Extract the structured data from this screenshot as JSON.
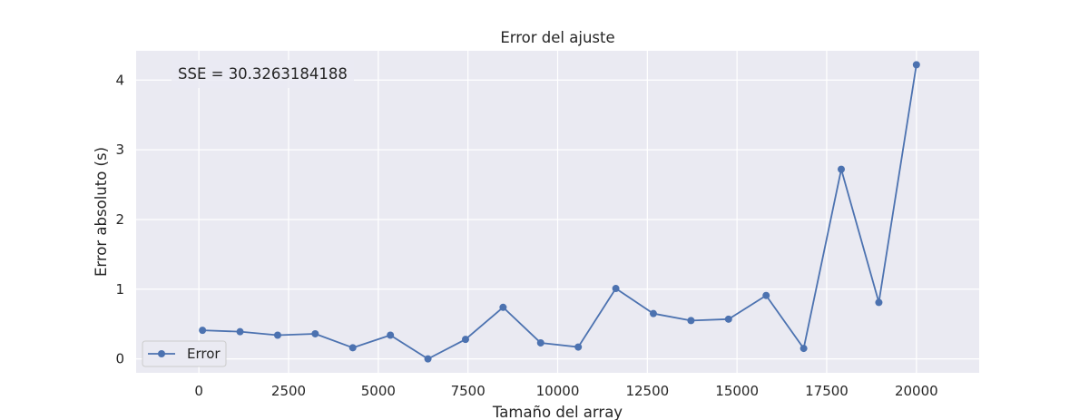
{
  "chart_data": {
    "type": "line",
    "title": "Error del ajuste",
    "xlabel": "Tamaño del array",
    "ylabel": "Error absoluto (s)",
    "xlim": [
      -1750,
      21750
    ],
    "ylim": [
      -0.2,
      4.42
    ],
    "xticks": [
      0,
      2500,
      5000,
      7500,
      10000,
      12500,
      15000,
      17500,
      20000
    ],
    "yticks": [
      0,
      1,
      2,
      3,
      4
    ],
    "grid": true,
    "legend_position": "lower-left",
    "annotation": "SSE = 30.3263184188",
    "series": [
      {
        "name": "Error",
        "color": "#4c72b0",
        "marker": "circle",
        "x": [
          100,
          1147,
          2195,
          3242,
          4289,
          5337,
          6384,
          7432,
          8479,
          9526,
          10574,
          11621,
          12668,
          13716,
          14763,
          15811,
          16858,
          17905,
          18953,
          20000
        ],
        "y": [
          0.41,
          0.39,
          0.34,
          0.36,
          0.16,
          0.34,
          0.0,
          0.28,
          0.74,
          0.23,
          0.17,
          1.01,
          0.65,
          0.55,
          0.57,
          0.91,
          0.15,
          2.72,
          0.81,
          4.22
        ]
      }
    ]
  }
}
